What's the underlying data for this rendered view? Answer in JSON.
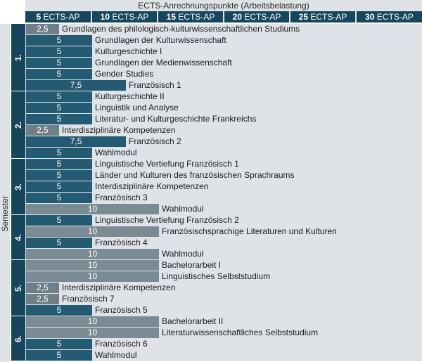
{
  "header": {
    "title": "ECTS-Anrechnungspunkte (Arbeitsbelastung)",
    "columns": [
      {
        "num": "5",
        "suffix": " ECTS-AP"
      },
      {
        "num": "10",
        "suffix": " ECTS-AP"
      },
      {
        "num": "15",
        "suffix": " ECTS-AP"
      },
      {
        "num": "20",
        "suffix": " ECTS-AP"
      },
      {
        "num": "25",
        "suffix": " ECTS-AP"
      },
      {
        "num": "30",
        "suffix": " ECTS-AP"
      }
    ]
  },
  "axis_label": "Semester",
  "semesters": [
    {
      "label": "1.",
      "rows": [
        {
          "ects": "2,5",
          "course": "Grundlagen des philologisch-kulturwissenschaftlichen Studiums"
        },
        {
          "ects": "5",
          "course": "Grundlagen der Kulturwissenschaft"
        },
        {
          "ects": "5",
          "course": "Kulturgeschichte I"
        },
        {
          "ects": "5",
          "course": "Grundlagen der Medienwissenschaft"
        },
        {
          "ects": "5",
          "course": "Gender Studies"
        },
        {
          "ects": "7,5",
          "course": "Französisch 1"
        }
      ]
    },
    {
      "label": "2.",
      "rows": [
        {
          "ects": "5",
          "course": "Kulturgeschichte II"
        },
        {
          "ects": "5",
          "course": "Linguistik und Analyse"
        },
        {
          "ects": "5",
          "course": "Literatur- und Kulturgeschichte Frankreichs"
        },
        {
          "ects": "2,5",
          "course": "Interdisziplinäre Kompetenzen"
        },
        {
          "ects": "7,5",
          "course": "Französisch 2"
        },
        {
          "ects": "5",
          "course": "Wahlmodul"
        }
      ]
    },
    {
      "label": "3.",
      "rows": [
        {
          "ects": "5",
          "course": "Linguistische Vertiefung Französisch 1"
        },
        {
          "ects": "5",
          "course": "Länder und Kulturen des französischen Sprachraums"
        },
        {
          "ects": "5",
          "course": "Interdisziplinäre Kompetenzen"
        },
        {
          "ects": "5",
          "course": "Französisch 3"
        },
        {
          "ects": "10",
          "course": "Wahlmodul"
        }
      ]
    },
    {
      "label": "4.",
      "rows": [
        {
          "ects": "5",
          "course": "Linguistische Vertiefung Französisch 2"
        },
        {
          "ects": "10",
          "course": "Französischsprachige Literaturen und Kulturen"
        },
        {
          "ects": "5",
          "course": "Französisch 4"
        },
        {
          "ects": "10",
          "course": "Wahlmodul"
        }
      ]
    },
    {
      "label": "5.",
      "rows": [
        {
          "ects": "10",
          "course": "Bachelorarbeit I"
        },
        {
          "ects": "10",
          "course": "Linguistisches Selbststudium"
        },
        {
          "ects": "2,5",
          "course": "Interdisziplinäre Kompetenzen"
        },
        {
          "ects": "2,5",
          "course": "Französisch 7"
        },
        {
          "ects": "5",
          "course": "Französisch 5"
        }
      ]
    },
    {
      "label": "6.",
      "rows": [
        {
          "ects": "10",
          "course": "Bachelorarbeit II"
        },
        {
          "ects": "10",
          "course": "Literaturwissenschaftliches Selbststudium"
        },
        {
          "ects": "5",
          "course": "Französisch 6"
        },
        {
          "ects": "5",
          "course": "Wahlmodul"
        }
      ]
    }
  ],
  "colors": {
    "dark_teal": "#17465c",
    "bar_teal": "#245a72",
    "bar_grey": "#7b8b94",
    "bar_grey_small": "#6e7f89",
    "background": "#dfe3e7"
  }
}
